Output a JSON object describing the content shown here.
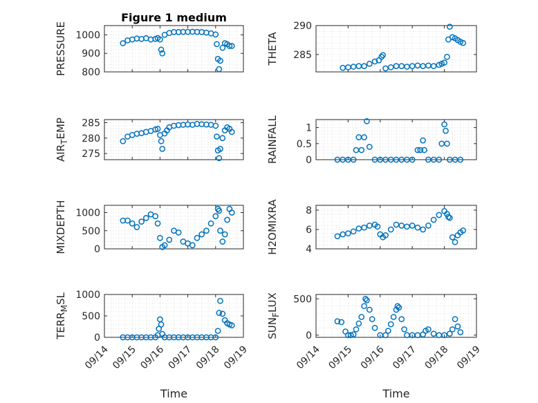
{
  "chart_data": [
    {
      "type": "scatter",
      "title": "Figure 1 medium",
      "ylabel": "PRESSURE",
      "xlabel": "",
      "ylim": [
        800,
        1050
      ],
      "yticks": [
        800,
        900,
        1000
      ],
      "yticklabels": [
        "800",
        "900",
        "1000"
      ],
      "xlim": [
        "09/14",
        "09/19"
      ],
      "show_xticklabels": false,
      "grid": "on",
      "marker": "o",
      "color": "#0072BD",
      "x": [
        "09/14 16:00",
        "09/14 20:00",
        "09/15 00:00",
        "09/15 04:00",
        "09/15 08:00",
        "09/15 12:00",
        "09/15 16:00",
        "09/15 20:00",
        "09/15 22:00",
        "09/16 00:00",
        "09/16 01:00",
        "09/16 02:00",
        "09/16 04:00",
        "09/16 08:00",
        "09/16 12:00",
        "09/16 16:00",
        "09/16 20:00",
        "09/17 00:00",
        "09/17 04:00",
        "09/17 08:00",
        "09/17 12:00",
        "09/17 16:00",
        "09/17 20:00",
        "09/18 00:00",
        "09/18 01:00",
        "09/18 02:00",
        "09/18 03:00",
        "09/18 04:00",
        "09/18 06:00",
        "09/18 08:00",
        "09/18 10:00",
        "09/18 12:00",
        "09/18 14:00"
      ],
      "y": [
        955,
        970,
        975,
        980,
        978,
        982,
        975,
        978,
        983,
        975,
        920,
        900,
        1000,
        1010,
        1015,
        1015,
        1016,
        1016,
        1017,
        1016,
        1015,
        1012,
        1008,
        1002,
        950,
        870,
        815,
        860,
        930,
        955,
        950,
        940,
        940
      ]
    },
    {
      "type": "scatter",
      "title": "",
      "ylabel": "THETA",
      "xlabel": "",
      "ylim": [
        282,
        290
      ],
      "yticks": [
        285,
        290
      ],
      "yticklabels": [
        "285",
        "290"
      ],
      "xlim": [
        "09/14",
        "09/19"
      ],
      "show_xticklabels": false,
      "grid": "on",
      "marker": "o",
      "color": "#0072BD",
      "x": [
        "09/14 20:00",
        "09/15 00:00",
        "09/15 04:00",
        "09/15 08:00",
        "09/15 12:00",
        "09/15 16:00",
        "09/15 20:00",
        "09/15 23:00",
        "09/16 01:00",
        "09/16 02:00",
        "09/16 04:00",
        "09/16 08:00",
        "09/16 12:00",
        "09/16 16:00",
        "09/16 20:00",
        "09/17 00:00",
        "09/17 04:00",
        "09/17 08:00",
        "09/17 12:00",
        "09/17 16:00",
        "09/17 20:00",
        "09/17 22:00",
        "09/18 00:00",
        "09/18 02:00",
        "09/18 03:00",
        "09/18 04:00",
        "09/18 06:00",
        "09/18 08:00",
        "09/18 10:00",
        "09/18 12:00",
        "09/18 14:00"
      ],
      "y": [
        282.7,
        282.8,
        282.9,
        283.0,
        283.0,
        283.4,
        283.8,
        284.0,
        284.6,
        284.9,
        282.6,
        282.8,
        283.0,
        283.0,
        282.9,
        283.0,
        283.1,
        283.0,
        283.1,
        283.0,
        283.2,
        283.4,
        283.6,
        284.6,
        287.6,
        289.8,
        288.0,
        287.8,
        287.5,
        287.2,
        287.0
      ]
    },
    {
      "type": "scatter",
      "title": "",
      "ylabel": "AIR_TEMP",
      "xlabel": "",
      "ylim": [
        273,
        286
      ],
      "yticks": [
        275,
        280,
        285
      ],
      "yticklabels": [
        "275",
        "280",
        "285"
      ],
      "xlim": [
        "09/14",
        "09/19"
      ],
      "show_xticklabels": false,
      "grid": "on",
      "marker": "o",
      "color": "#0072BD",
      "x": [
        "09/14 16:00",
        "09/14 20:00",
        "09/15 00:00",
        "09/15 04:00",
        "09/15 08:00",
        "09/15 12:00",
        "09/15 16:00",
        "09/15 20:00",
        "09/15 22:00",
        "09/16 00:00",
        "09/16 01:00",
        "09/16 02:00",
        "09/16 04:00",
        "09/16 06:00",
        "09/16 08:00",
        "09/16 12:00",
        "09/16 16:00",
        "09/16 20:00",
        "09/17 00:00",
        "09/17 04:00",
        "09/17 08:00",
        "09/17 12:00",
        "09/17 16:00",
        "09/17 20:00",
        "09/18 00:00",
        "09/18 01:00",
        "09/18 02:00",
        "09/18 03:00",
        "09/18 04:00",
        "09/18 06:00",
        "09/18 08:00",
        "09/18 10:00",
        "09/18 12:00",
        "09/18 14:00"
      ],
      "y": [
        279.0,
        280.5,
        281.0,
        281.4,
        281.6,
        282.0,
        282.3,
        282.8,
        283.0,
        281.0,
        279.0,
        276.5,
        281.5,
        282.5,
        283.5,
        284.0,
        284.2,
        284.3,
        284.4,
        284.3,
        284.6,
        284.5,
        284.4,
        284.3,
        284.0,
        280.5,
        276.0,
        273.5,
        276.5,
        280.0,
        282.5,
        283.5,
        283.0,
        282.0
      ]
    },
    {
      "type": "scatter",
      "title": "",
      "ylabel": "RAINFALL",
      "xlabel": "",
      "ylim": [
        0,
        1.25
      ],
      "yticks": [
        0,
        0.5,
        1
      ],
      "yticklabels": [
        "0",
        "0.5",
        "1"
      ],
      "xlim": [
        "09/14",
        "09/19"
      ],
      "show_xticklabels": false,
      "grid": "on",
      "marker": "o",
      "color": "#0072BD",
      "x": [
        "09/14 16:00",
        "09/14 20:00",
        "09/15 00:00",
        "09/15 04:00",
        "09/15 06:00",
        "09/15 08:00",
        "09/15 10:00",
        "09/15 12:00",
        "09/15 14:00",
        "09/15 16:00",
        "09/15 20:00",
        "09/16 00:00",
        "09/16 04:00",
        "09/16 08:00",
        "09/16 12:00",
        "09/16 16:00",
        "09/16 20:00",
        "09/17 00:00",
        "09/17 04:00",
        "09/17 06:00",
        "09/17 08:00",
        "09/17 09:00",
        "09/17 12:00",
        "09/17 16:00",
        "09/17 20:00",
        "09/17 22:00",
        "09/18 00:00",
        "09/18 01:00",
        "09/18 02:00",
        "09/18 04:00",
        "09/18 08:00",
        "09/18 12:00"
      ],
      "y": [
        0,
        0,
        0,
        0,
        0.3,
        0.7,
        0.3,
        0.7,
        1.2,
        0.4,
        0,
        0,
        0,
        0,
        0,
        0,
        0,
        0,
        0.3,
        0.3,
        0.6,
        0.3,
        0,
        0,
        0,
        0.5,
        1.1,
        0.9,
        0.5,
        0,
        0,
        0
      ]
    },
    {
      "type": "scatter",
      "title": "",
      "ylabel": "MIXDEPTH",
      "xlabel": "",
      "ylim": [
        0,
        1200
      ],
      "yticks": [
        0,
        500,
        1000
      ],
      "yticklabels": [
        "0",
        "500",
        "1000"
      ],
      "xlim": [
        "09/14",
        "09/19"
      ],
      "show_xticklabels": false,
      "grid": "on",
      "marker": "o",
      "color": "#0072BD",
      "x": [
        "09/14 16:00",
        "09/14 20:00",
        "09/15 00:00",
        "09/15 04:00",
        "09/15 08:00",
        "09/15 12:00",
        "09/15 16:00",
        "09/15 20:00",
        "09/15 22:00",
        "09/16 00:00",
        "09/16 02:00",
        "09/16 04:00",
        "09/16 08:00",
        "09/16 12:00",
        "09/16 16:00",
        "09/16 20:00",
        "09/17 00:00",
        "09/17 04:00",
        "09/17 08:00",
        "09/17 12:00",
        "09/17 16:00",
        "09/17 20:00",
        "09/18 00:00",
        "09/18 02:00",
        "09/18 03:00",
        "09/18 04:00",
        "09/18 06:00",
        "09/18 08:00",
        "09/18 10:00",
        "09/18 12:00",
        "09/18 14:00"
      ],
      "y": [
        780,
        780,
        700,
        600,
        750,
        850,
        950,
        900,
        700,
        300,
        50,
        100,
        250,
        500,
        450,
        200,
        150,
        100,
        300,
        400,
        500,
        700,
        900,
        1100,
        1050,
        500,
        200,
        400,
        800,
        1100,
        1000
      ]
    },
    {
      "type": "scatter",
      "title": "",
      "ylabel": "H2OMIXRA",
      "xlabel": "",
      "ylim": [
        4,
        8.5
      ],
      "yticks": [
        4,
        6,
        8
      ],
      "yticklabels": [
        "4",
        "6",
        "8"
      ],
      "xlim": [
        "09/14",
        "09/19"
      ],
      "show_xticklabels": false,
      "grid": "on",
      "marker": "o",
      "color": "#0072BD",
      "x": [
        "09/14 16:00",
        "09/14 20:00",
        "09/15 00:00",
        "09/15 04:00",
        "09/15 08:00",
        "09/15 12:00",
        "09/15 16:00",
        "09/15 20:00",
        "09/15 22:00",
        "09/16 00:00",
        "09/16 02:00",
        "09/16 04:00",
        "09/16 08:00",
        "09/16 12:00",
        "09/16 16:00",
        "09/16 20:00",
        "09/17 00:00",
        "09/17 04:00",
        "09/17 08:00",
        "09/17 12:00",
        "09/17 16:00",
        "09/17 20:00",
        "09/18 00:00",
        "09/18 02:00",
        "09/18 03:00",
        "09/18 04:00",
        "09/18 06:00",
        "09/18 08:00",
        "09/18 10:00",
        "09/18 12:00",
        "09/18 14:00"
      ],
      "y": [
        5.3,
        5.5,
        5.6,
        5.8,
        6.1,
        6.2,
        6.4,
        6.5,
        6.3,
        5.5,
        5.2,
        5.4,
        6.0,
        6.5,
        6.4,
        6.3,
        6.4,
        6.2,
        6.0,
        6.4,
        7.0,
        7.5,
        7.9,
        7.6,
        7.3,
        7.2,
        5.2,
        4.7,
        5.4,
        5.7,
        5.9
      ]
    },
    {
      "type": "scatter",
      "title": "",
      "ylabel": "TERR_MSL",
      "xlabel": "Time",
      "ylim": [
        0,
        1000
      ],
      "yticks": [
        0,
        500,
        1000
      ],
      "yticklabels": [
        "0",
        "500",
        "1000"
      ],
      "xlim": [
        "09/14",
        "09/19"
      ],
      "xticklabels": [
        "09/14",
        "09/15",
        "09/16",
        "09/17",
        "09/18",
        "09/19"
      ],
      "grid": "on",
      "marker": "o",
      "color": "#0072BD",
      "x": [
        "09/14 16:00",
        "09/14 20:00",
        "09/15 00:00",
        "09/15 04:00",
        "09/15 08:00",
        "09/15 12:00",
        "09/15 16:00",
        "09/15 20:00",
        "09/15 22:00",
        "09/15 23:00",
        "09/16 00:00",
        "09/16 01:00",
        "09/16 02:00",
        "09/16 04:00",
        "09/16 08:00",
        "09/16 12:00",
        "09/16 16:00",
        "09/16 20:00",
        "09/17 00:00",
        "09/17 04:00",
        "09/17 08:00",
        "09/17 12:00",
        "09/17 16:00",
        "09/17 20:00",
        "09/18 00:00",
        "09/18 02:00",
        "09/18 03:00",
        "09/18 04:00",
        "09/18 06:00",
        "09/18 08:00",
        "09/18 10:00",
        "09/18 12:00",
        "09/18 14:00"
      ],
      "y": [
        0,
        0,
        0,
        0,
        0,
        0,
        0,
        0,
        50,
        200,
        420,
        300,
        80,
        0,
        0,
        0,
        0,
        0,
        0,
        0,
        0,
        0,
        0,
        0,
        0,
        150,
        570,
        850,
        550,
        400,
        330,
        300,
        280
      ]
    },
    {
      "type": "scatter",
      "title": "",
      "ylabel": "SUN_FLUX",
      "xlabel": "Time",
      "ylim": [
        -30,
        560
      ],
      "yticks": [
        0,
        500
      ],
      "yticklabels": [
        "0",
        "500"
      ],
      "xlim": [
        "09/14",
        "09/19"
      ],
      "xticklabels": [
        "09/14",
        "09/15",
        "09/16",
        "09/17",
        "09/18",
        "09/19"
      ],
      "grid": "on",
      "marker": "o",
      "color": "#0072BD",
      "x": [
        "09/14 16:00",
        "09/14 19:00",
        "09/14 22:00",
        "09/15 00:00",
        "09/15 02:00",
        "09/15 04:00",
        "09/15 06:00",
        "09/15 08:00",
        "09/15 10:00",
        "09/15 12:00",
        "09/15 13:00",
        "09/15 14:00",
        "09/15 16:00",
        "09/15 18:00",
        "09/15 20:00",
        "09/16 00:00",
        "09/16 04:00",
        "09/16 06:00",
        "09/16 08:00",
        "09/16 10:00",
        "09/16 12:00",
        "09/16 13:00",
        "09/16 14:00",
        "09/16 16:00",
        "09/16 18:00",
        "09/16 20:00",
        "09/17 00:00",
        "09/17 04:00",
        "09/17 08:00",
        "09/17 10:00",
        "09/17 12:00",
        "09/17 16:00",
        "09/17 20:00",
        "09/18 00:00",
        "09/18 04:00",
        "09/18 06:00",
        "09/18 08:00",
        "09/18 10:00",
        "09/18 12:00"
      ],
      "y": [
        190,
        180,
        50,
        0,
        0,
        10,
        80,
        160,
        250,
        400,
        500,
        480,
        350,
        220,
        100,
        0,
        0,
        60,
        150,
        250,
        350,
        400,
        380,
        220,
        80,
        0,
        0,
        0,
        10,
        60,
        80,
        20,
        0,
        0,
        20,
        80,
        220,
        120,
        40
      ]
    }
  ]
}
